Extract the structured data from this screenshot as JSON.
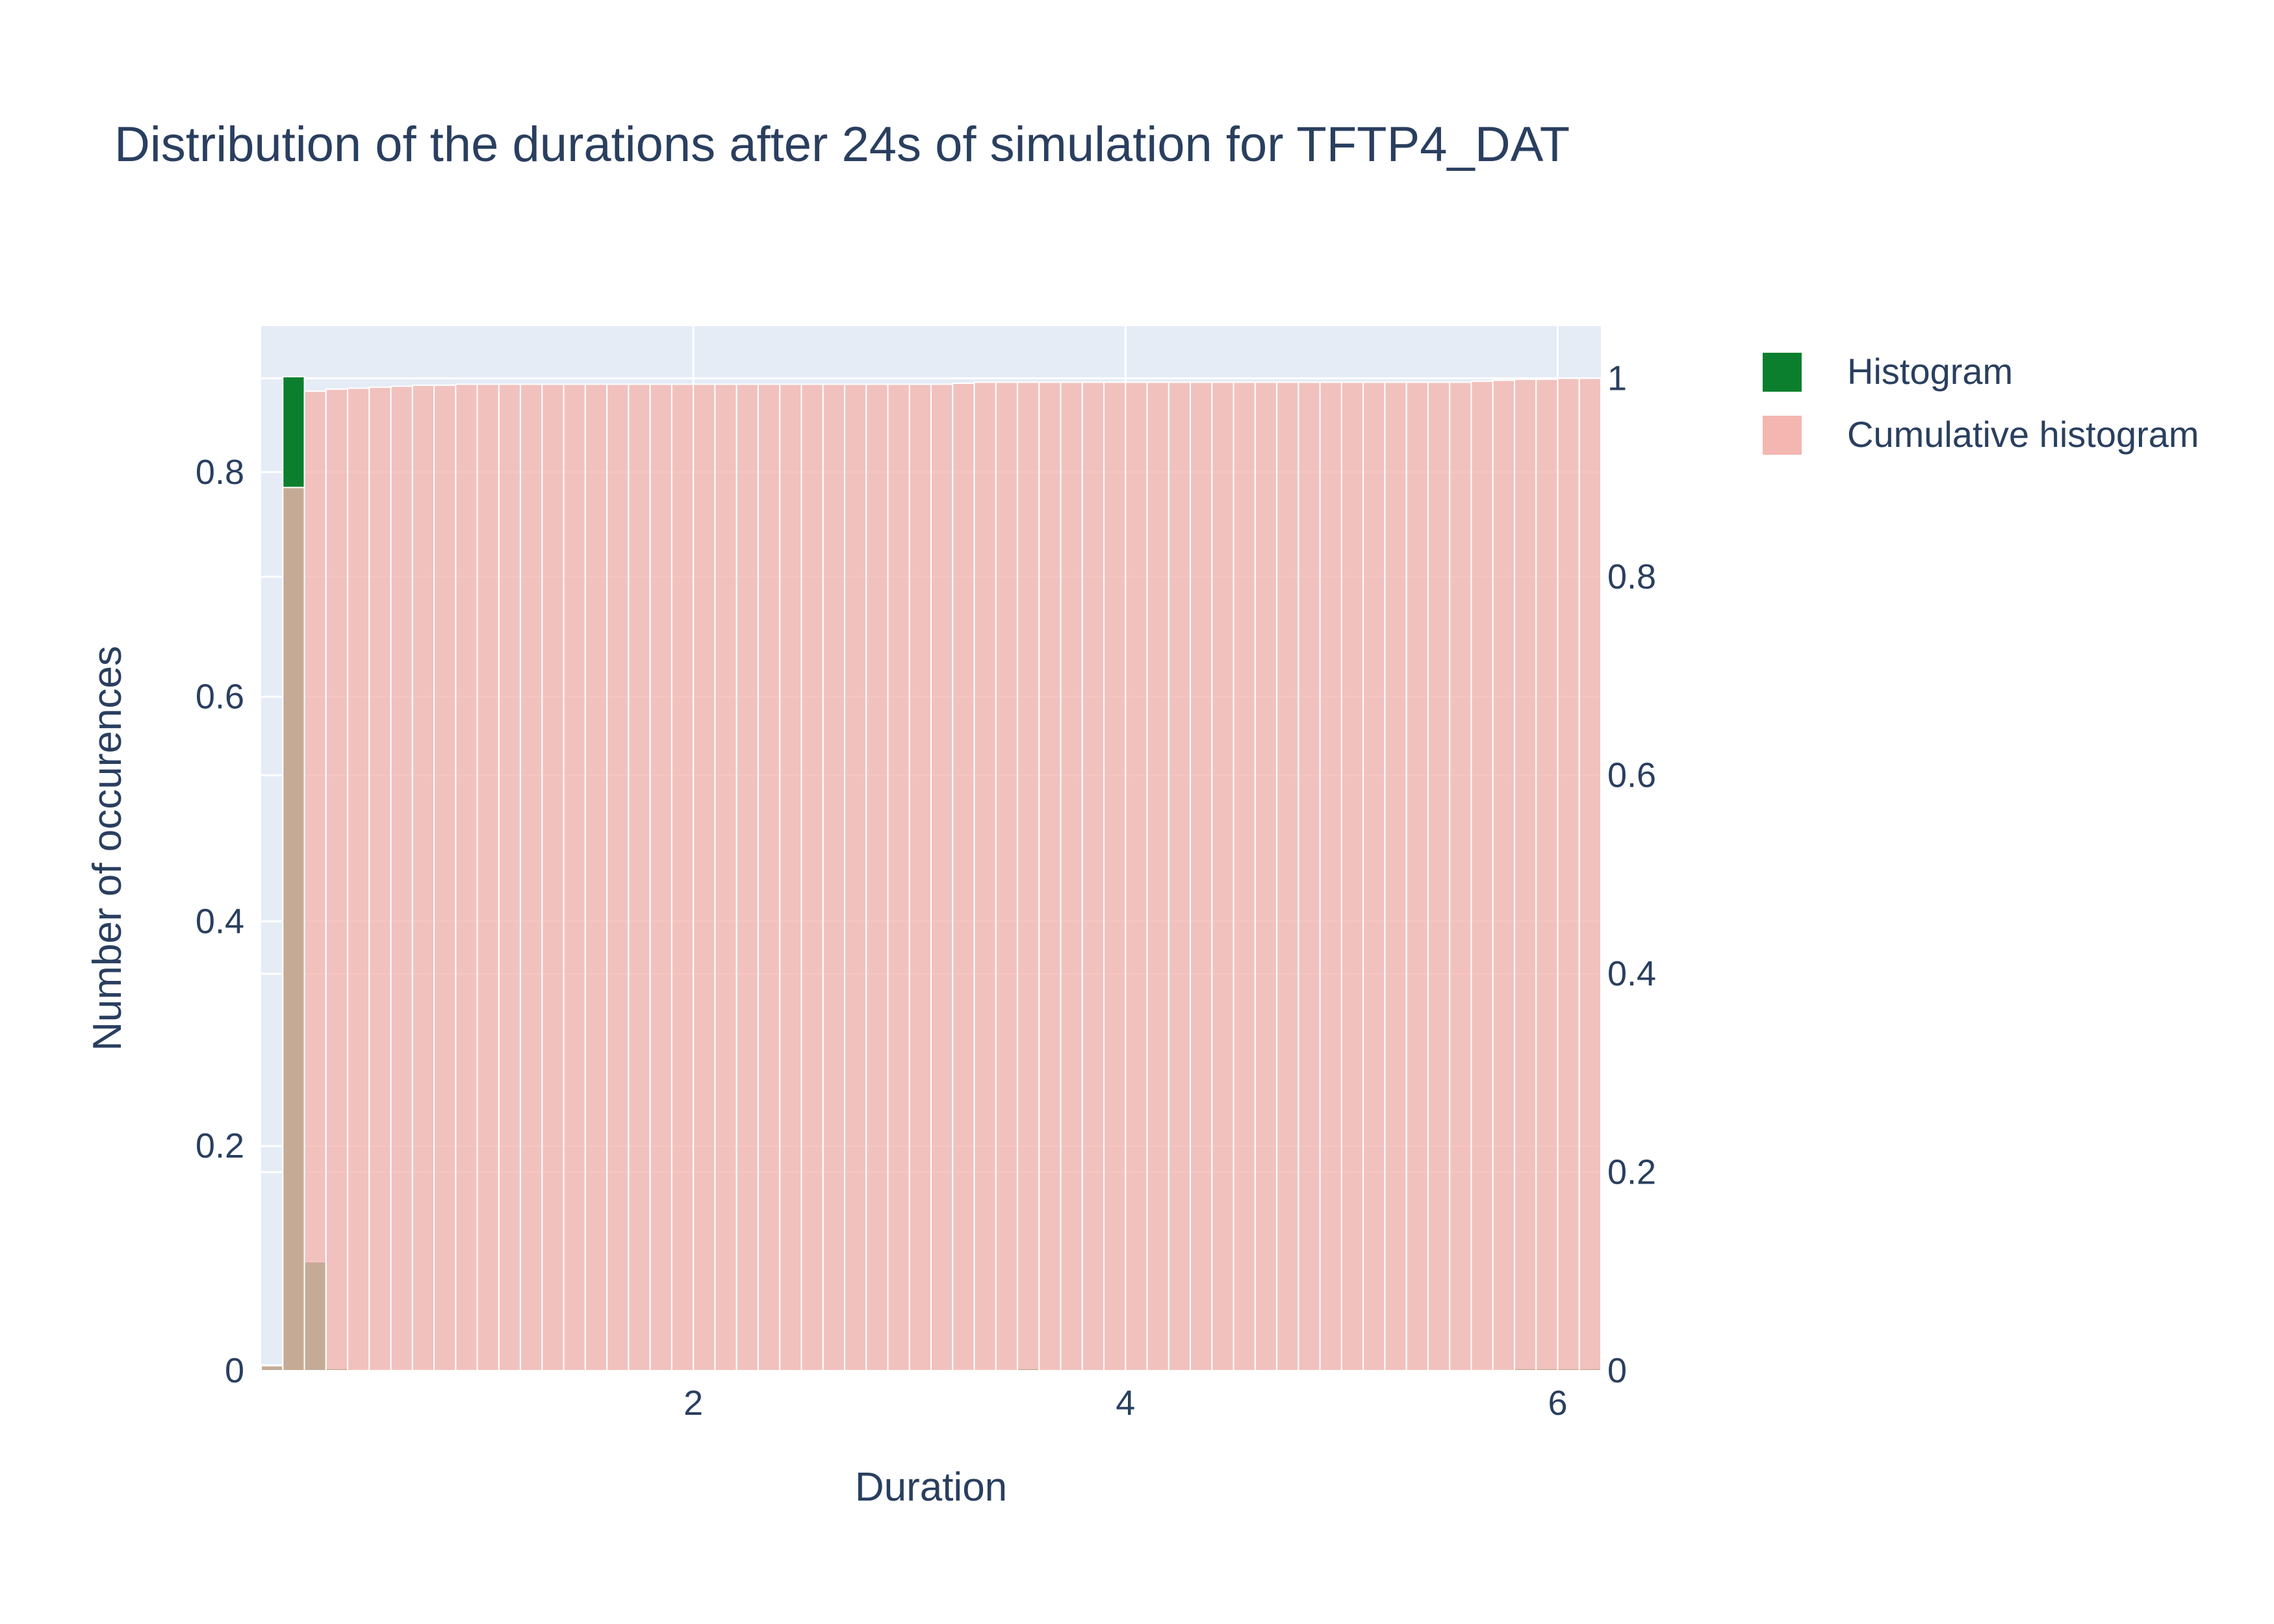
{
  "chart_data": {
    "type": "bar",
    "title": "Distribution of the durations after 24s of simulation for TFTP4_DAT",
    "xlabel": "Duration",
    "ylabel": "Number of occurences",
    "xlim": [
      0,
      6.2
    ],
    "ylim_left": [
      0,
      0.93
    ],
    "ylim_right": [
      0,
      1.0526
    ],
    "x_ticks": [
      {
        "value": 2,
        "label": "2"
      },
      {
        "value": 4,
        "label": "4"
      },
      {
        "value": 6,
        "label": "6"
      }
    ],
    "y_ticks_left": [
      {
        "value": 0,
        "label": "0"
      },
      {
        "value": 0.2,
        "label": "0.2"
      },
      {
        "value": 0.4,
        "label": "0.4"
      },
      {
        "value": 0.6,
        "label": "0.6"
      },
      {
        "value": 0.8,
        "label": "0.8"
      }
    ],
    "y_ticks_right": [
      {
        "value": 0,
        "label": "0"
      },
      {
        "value": 0.2,
        "label": "0.2"
      },
      {
        "value": 0.4,
        "label": "0.4"
      },
      {
        "value": 0.6,
        "label": "0.6"
      },
      {
        "value": 0.8,
        "label": "0.8"
      },
      {
        "value": 1,
        "label": "1"
      }
    ],
    "bin_width": 0.1,
    "grid": true,
    "legend_position": "right",
    "series": [
      {
        "name": "Histogram",
        "axis": "left",
        "color": "#0b7f2e",
        "x": [
          0.05,
          0.15,
          0.25,
          0.35,
          0.45,
          0.55,
          0.65,
          0.75,
          0.85,
          0.95,
          1.05,
          1.15,
          1.25,
          1.35,
          1.45,
          1.55,
          1.65,
          1.75,
          1.85,
          1.95,
          2.05,
          2.15,
          2.25,
          2.35,
          2.45,
          2.55,
          2.65,
          2.75,
          2.85,
          2.95,
          3.05,
          3.15,
          3.25,
          3.35,
          3.45,
          3.55,
          3.65,
          3.75,
          3.85,
          3.95,
          4.05,
          4.15,
          4.25,
          4.35,
          4.45,
          4.55,
          4.65,
          4.75,
          4.85,
          4.95,
          5.05,
          5.15,
          5.25,
          5.35,
          5.45,
          5.55,
          5.65,
          5.75,
          5.85,
          5.95,
          6.05,
          6.15
        ],
        "values": [
          0.005,
          0.885,
          0.097,
          0.002,
          0.001,
          0.001,
          0.001,
          0.001,
          0.0,
          0.001,
          0.0,
          0.0,
          0.0,
          0.0,
          0.0,
          0.0,
          0.0,
          0.0,
          0.0,
          0.0,
          0.0,
          0.0,
          0.0,
          0.0,
          0.0,
          0.0,
          0.0,
          0.0,
          0.0,
          0.0,
          0.0,
          0.0,
          0.001,
          0.001,
          0.001,
          0.002,
          0.001,
          0.0,
          0.0,
          0.0,
          0.0,
          0.0,
          0.0,
          0.0,
          0.0,
          0.0,
          0.0,
          0.0,
          0.0,
          0.0,
          0.0,
          0.0,
          0.0,
          0.0,
          0.0,
          0.0,
          0.001,
          0.001,
          0.002,
          0.002,
          0.002,
          0.002
        ]
      },
      {
        "name": "Cumulative histogram",
        "axis": "right",
        "color": "#f4b6b0",
        "x": [
          0.05,
          0.15,
          0.25,
          0.35,
          0.45,
          0.55,
          0.65,
          0.75,
          0.85,
          0.95,
          1.05,
          1.15,
          1.25,
          1.35,
          1.45,
          1.55,
          1.65,
          1.75,
          1.85,
          1.95,
          2.05,
          2.15,
          2.25,
          2.35,
          2.45,
          2.55,
          2.65,
          2.75,
          2.85,
          2.95,
          3.05,
          3.15,
          3.25,
          3.35,
          3.45,
          3.55,
          3.65,
          3.75,
          3.85,
          3.95,
          4.05,
          4.15,
          4.25,
          4.35,
          4.45,
          4.55,
          4.65,
          4.75,
          4.85,
          4.95,
          5.05,
          5.15,
          5.25,
          5.35,
          5.45,
          5.55,
          5.65,
          5.75,
          5.85,
          5.95,
          6.05,
          6.15
        ],
        "values": [
          0.005,
          0.89,
          0.987,
          0.989,
          0.99,
          0.991,
          0.992,
          0.993,
          0.993,
          0.994,
          0.994,
          0.994,
          0.994,
          0.994,
          0.994,
          0.994,
          0.994,
          0.994,
          0.994,
          0.994,
          0.994,
          0.994,
          0.994,
          0.994,
          0.994,
          0.994,
          0.994,
          0.994,
          0.994,
          0.994,
          0.994,
          0.994,
          0.995,
          0.996,
          0.996,
          0.996,
          0.996,
          0.996,
          0.996,
          0.996,
          0.996,
          0.996,
          0.996,
          0.996,
          0.996,
          0.996,
          0.996,
          0.996,
          0.996,
          0.996,
          0.996,
          0.996,
          0.996,
          0.996,
          0.996,
          0.996,
          0.997,
          0.998,
          0.999,
          0.999,
          1.0,
          1.0
        ]
      }
    ]
  }
}
